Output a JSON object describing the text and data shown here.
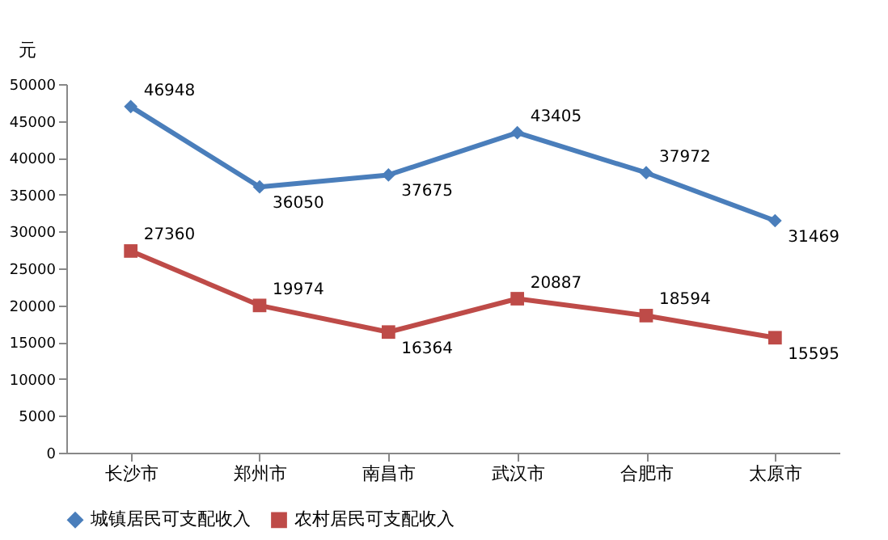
{
  "chart_data": {
    "type": "line",
    "ylabel": "元",
    "categories": [
      "长沙市",
      "郑州市",
      "南昌市",
      "武汉市",
      "合肥市",
      "太原市"
    ],
    "series": [
      {
        "name": "城镇居民可支配收入",
        "color": "#4a7ebb",
        "marker": "diamond",
        "values": [
          46948,
          36050,
          37675,
          43405,
          37972,
          31469
        ]
      },
      {
        "name": "农村居民可支配收入",
        "color": "#be4b48",
        "marker": "square",
        "values": [
          27360,
          19974,
          16364,
          20887,
          18594,
          15595
        ]
      }
    ],
    "ylim": [
      0,
      50000
    ],
    "yticks": [
      0,
      5000,
      10000,
      15000,
      20000,
      25000,
      30000,
      35000,
      40000,
      45000,
      50000
    ],
    "grid": false,
    "legend": "bottom",
    "data_labels": true,
    "line_style": "solid"
  }
}
